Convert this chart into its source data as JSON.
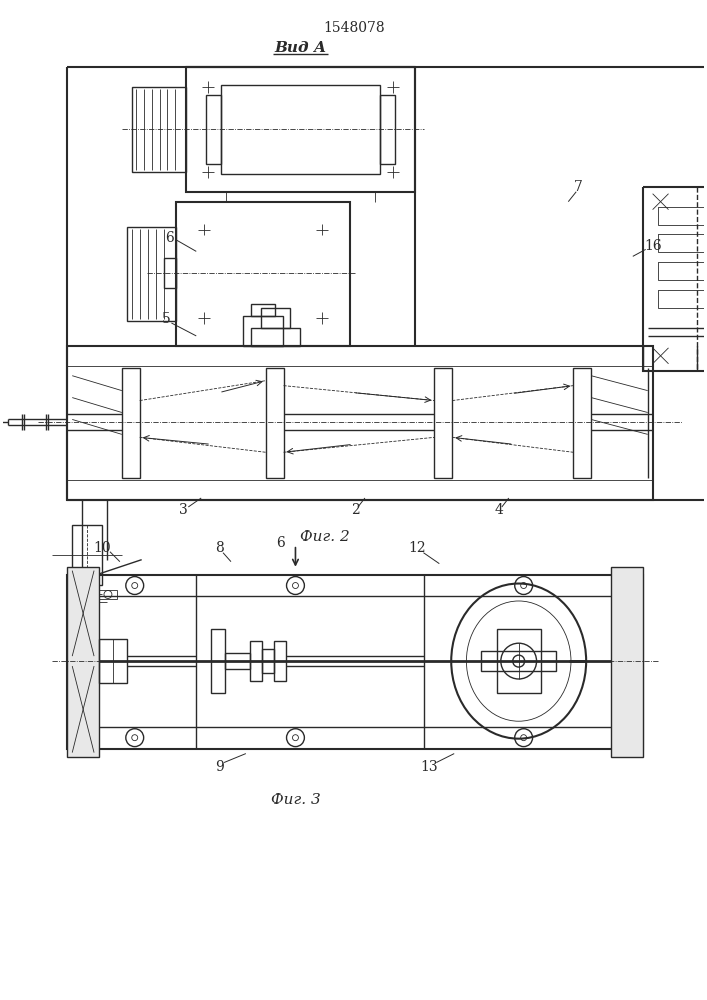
{
  "title": "1548078",
  "view_label": "Вид А",
  "fig2_label": "Фиг. 2",
  "fig3_label": "Фиг. 3",
  "bg_color": "#ffffff",
  "line_color": "#2a2a2a",
  "lw_thick": 1.5,
  "lw_med": 1.0,
  "lw_thin": 0.6
}
